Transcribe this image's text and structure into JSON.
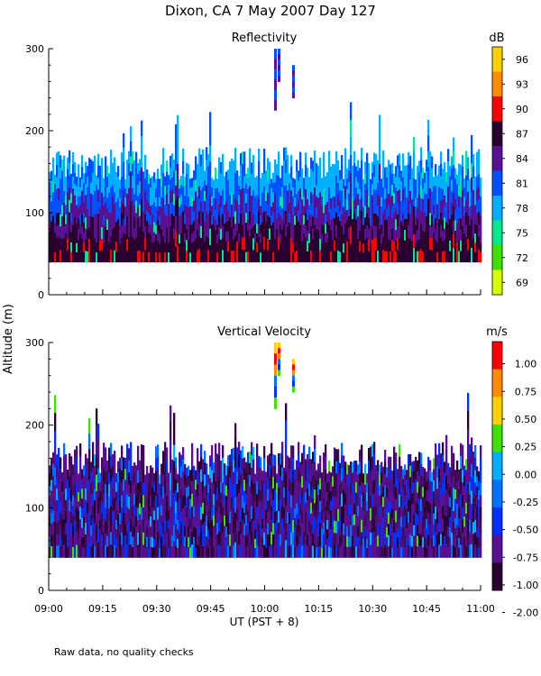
{
  "figure": {
    "title": "Dixon, CA  7 May 2007  Day 127",
    "shared_ylabel": "Altitude (m)",
    "xlabel": "UT  (PST + 8)",
    "footnote": "Raw data, no quality checks"
  },
  "chart_data": [
    {
      "type": "heatmap",
      "title": "Reflectivity",
      "colorbar_label": "dB",
      "xlim": [
        0,
        120
      ],
      "ylim": [
        0,
        300
      ],
      "y_ticks": [
        0,
        100,
        200,
        300
      ],
      "x_ticks": [
        0,
        15,
        30,
        45,
        60,
        75,
        90,
        105,
        120
      ],
      "x_tick_labels": [
        "09:00",
        "09:15",
        "09:30",
        "09:45",
        "10:00",
        "10:15",
        "10:30",
        "10:45",
        "11:00"
      ],
      "colorbar_ticks": [
        "96",
        "93",
        "90",
        "87",
        "84",
        "81",
        "78",
        "75",
        "72",
        "69"
      ],
      "colorbar_colors": [
        "#ffd000",
        "#ff8c00",
        "#ff0000",
        "#2a0030",
        "#5a1090",
        "#0050ff",
        "#00b0ff",
        "#00e890",
        "#40e000",
        "#d8ff00"
      ],
      "data_floor_m": 40,
      "typical_top_m": [
        140,
        180
      ],
      "max_echo_top_m": 240,
      "isolated_echoes": [
        {
          "minute": 63,
          "alt_range": [
            225,
            300
          ]
        },
        {
          "minute": 64,
          "alt_range": [
            260,
            300
          ]
        },
        {
          "minute": 68,
          "alt_range": [
            240,
            280
          ]
        }
      ]
    },
    {
      "type": "heatmap",
      "title": "Vertical Velocity",
      "colorbar_label": "m/s",
      "xlim": [
        0,
        120
      ],
      "ylim": [
        0,
        300
      ],
      "y_ticks": [
        0,
        100,
        200,
        300
      ],
      "x_ticks": [
        0,
        15,
        30,
        45,
        60,
        75,
        90,
        105,
        120
      ],
      "x_tick_labels": [
        "09:00",
        "09:15",
        "09:30",
        "09:45",
        "10:00",
        "10:15",
        "10:30",
        "10:45",
        "11:00"
      ],
      "colorbar_ticks": [
        "1.00",
        "0.75",
        "0.50",
        "0.25",
        "0.00",
        "-0.25",
        "-0.50",
        "-0.75",
        "-1.00",
        "-2.00"
      ],
      "colorbar_colors": [
        "#ff0000",
        "#ff8c00",
        "#ffd000",
        "#40e000",
        "#00b0ff",
        "#0070ff",
        "#0030ff",
        "#5a1090",
        "#2a0030"
      ],
      "data_floor_m": 40,
      "typical_top_m": [
        140,
        180
      ],
      "max_echo_top_m": 240,
      "isolated_echoes": [
        {
          "minute": 63,
          "alt_range": [
            220,
            300
          ]
        },
        {
          "minute": 64,
          "alt_range": [
            260,
            300
          ]
        },
        {
          "minute": 68,
          "alt_range": [
            240,
            280
          ]
        }
      ]
    }
  ]
}
